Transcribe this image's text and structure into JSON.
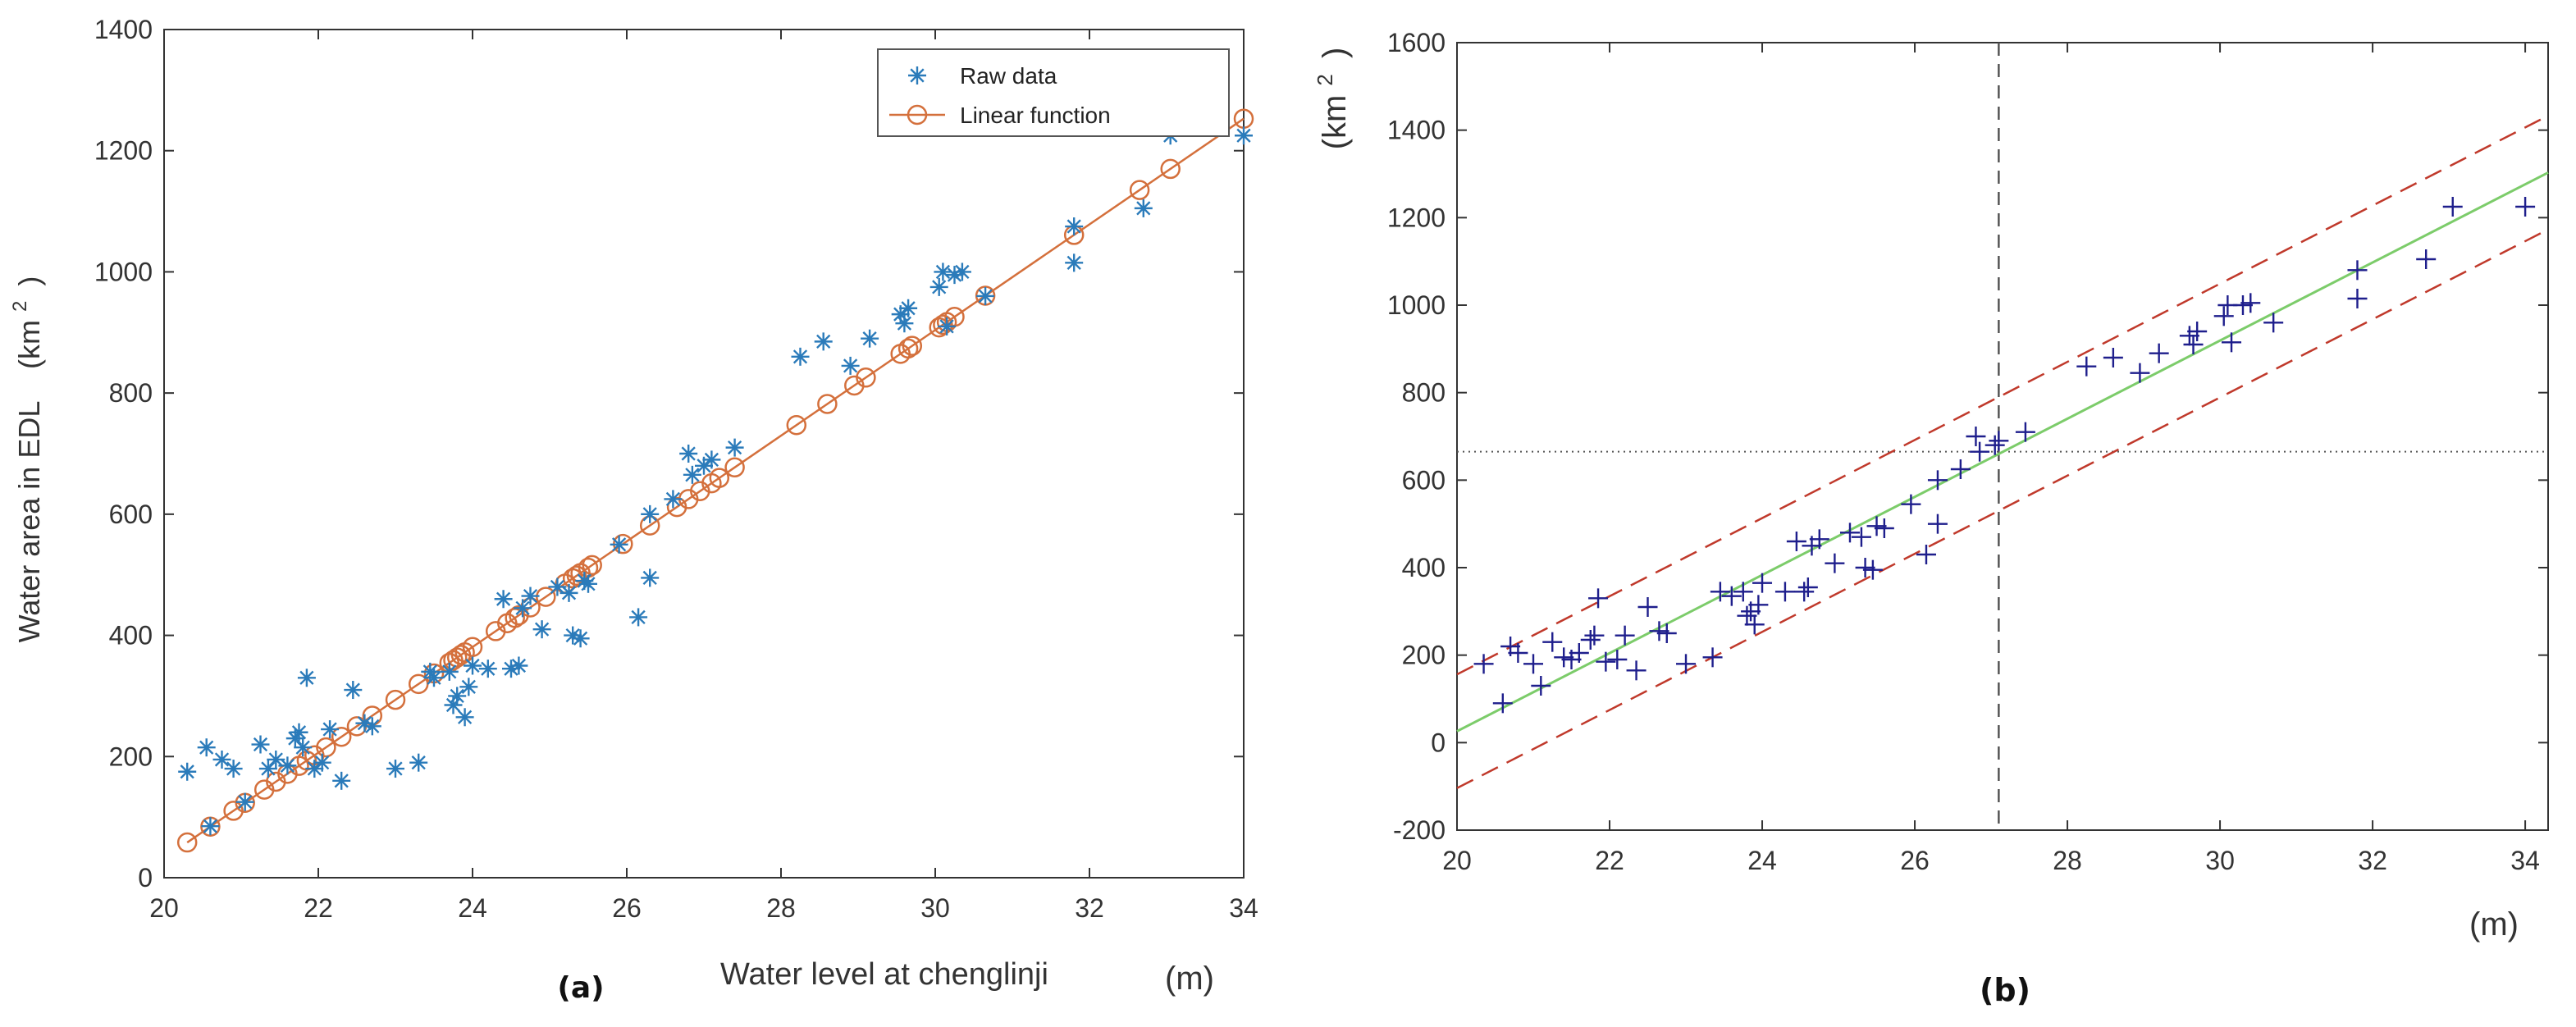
{
  "chart_data": [
    {
      "type": "scatter",
      "panel_label": "(a)",
      "title": "",
      "xlabel": "Water level at chenglinji",
      "xunit": "(m)",
      "ylabel": "Water area in EDL",
      "yunit": "(km",
      "yunit_sup": "2",
      "yunit_close": ")",
      "xlim": [
        20,
        34
      ],
      "ylim": [
        0,
        1400
      ],
      "xticks": [
        20,
        22,
        24,
        26,
        28,
        30,
        32,
        34
      ],
      "yticks": [
        0,
        200,
        400,
        600,
        800,
        1000,
        1200,
        1400
      ],
      "grid": false,
      "legend_position": "top-right",
      "colors": {
        "raw": "#2b7bba",
        "linear": "#d4703c"
      },
      "series": [
        {
          "name": "Raw data",
          "marker": "asterisk",
          "points": [
            [
              20.3,
              175
            ],
            [
              20.55,
              215
            ],
            [
              20.6,
              85
            ],
            [
              20.75,
              195
            ],
            [
              20.9,
              180
            ],
            [
              21.05,
              125
            ],
            [
              21.25,
              220
            ],
            [
              21.35,
              180
            ],
            [
              21.45,
              195
            ],
            [
              21.6,
              185
            ],
            [
              21.7,
              230
            ],
            [
              21.75,
              240
            ],
            [
              21.8,
              215
            ],
            [
              21.85,
              330
            ],
            [
              21.95,
              180
            ],
            [
              22.05,
              190
            ],
            [
              22.15,
              245
            ],
            [
              22.3,
              160
            ],
            [
              22.45,
              310
            ],
            [
              22.6,
              255
            ],
            [
              22.7,
              250
            ],
            [
              23.0,
              180
            ],
            [
              23.3,
              190
            ],
            [
              23.45,
              340
            ],
            [
              23.5,
              330
            ],
            [
              23.7,
              340
            ],
            [
              23.75,
              285
            ],
            [
              23.8,
              300
            ],
            [
              23.9,
              265
            ],
            [
              23.95,
              315
            ],
            [
              24.0,
              350
            ],
            [
              24.2,
              345
            ],
            [
              24.4,
              460
            ],
            [
              24.5,
              345
            ],
            [
              24.6,
              350
            ],
            [
              24.65,
              445
            ],
            [
              24.75,
              465
            ],
            [
              24.9,
              410
            ],
            [
              25.1,
              480
            ],
            [
              25.25,
              470
            ],
            [
              25.3,
              400
            ],
            [
              25.4,
              395
            ],
            [
              25.45,
              490
            ],
            [
              25.5,
              485
            ],
            [
              25.9,
              550
            ],
            [
              26.15,
              430
            ],
            [
              26.3,
              495
            ],
            [
              26.3,
              600
            ],
            [
              26.6,
              625
            ],
            [
              26.8,
              700
            ],
            [
              26.85,
              665
            ],
            [
              27.0,
              680
            ],
            [
              27.1,
              690
            ],
            [
              27.4,
              710
            ],
            [
              28.25,
              860
            ],
            [
              28.55,
              885
            ],
            [
              28.9,
              845
            ],
            [
              29.15,
              890
            ],
            [
              29.55,
              930
            ],
            [
              29.6,
              915
            ],
            [
              29.65,
              940
            ],
            [
              30.05,
              975
            ],
            [
              30.1,
              1000
            ],
            [
              30.15,
              910
            ],
            [
              30.25,
              995
            ],
            [
              30.35,
              1000
            ],
            [
              30.65,
              960
            ],
            [
              31.8,
              1075
            ],
            [
              31.8,
              1015
            ],
            [
              32.7,
              1105
            ],
            [
              33.05,
              1225
            ],
            [
              34.0,
              1225
            ]
          ]
        },
        {
          "name": "Linear function",
          "marker": "circle-line",
          "line": {
            "slope": 87.2,
            "intercept": -1712
          },
          "x": [
            20.3,
            20.6,
            20.9,
            21.05,
            21.3,
            21.45,
            21.6,
            21.75,
            21.85,
            21.95,
            22.1,
            22.3,
            22.5,
            22.7,
            23.0,
            23.3,
            23.5,
            23.7,
            23.75,
            23.8,
            23.85,
            23.9,
            24.0,
            24.3,
            24.45,
            24.55,
            24.6,
            24.75,
            24.95,
            25.2,
            25.3,
            25.35,
            25.4,
            25.5,
            25.55,
            25.95,
            26.3,
            26.65,
            26.8,
            26.95,
            27.1,
            27.2,
            27.4,
            28.2,
            28.6,
            28.95,
            29.1,
            29.55,
            29.65,
            29.7,
            30.05,
            30.1,
            30.15,
            30.25,
            30.65,
            31.8,
            32.65,
            33.05,
            34.0
          ]
        }
      ]
    },
    {
      "type": "scatter",
      "panel_label": "(b)",
      "title": "",
      "xlabel": "",
      "xunit": "(m)",
      "ylabel": "",
      "yunit": "(km",
      "yunit_sup": "2",
      "yunit_close": ")",
      "xlim": [
        20,
        34.3
      ],
      "ylim": [
        -200,
        1600
      ],
      "xticks": [
        20,
        22,
        24,
        26,
        28,
        30,
        32,
        34
      ],
      "yticks": [
        -200,
        0,
        200,
        400,
        600,
        800,
        1000,
        1200,
        1400,
        1600
      ],
      "grid": false,
      "colors": {
        "points": "#1e1e8c",
        "fit": "#7ccc6a",
        "bounds": "#c0392b",
        "ref": "#555555"
      },
      "fit_line": {
        "slope": 89.3,
        "intercept": -1760
      },
      "prediction_band": {
        "offset": 130
      },
      "reference": {
        "x": 27.1,
        "y": 665
      },
      "series": [
        {
          "marker": "plus",
          "points": [
            [
              20.35,
              180
            ],
            [
              20.6,
              90
            ],
            [
              20.7,
              220
            ],
            [
              20.8,
              205
            ],
            [
              21.0,
              180
            ],
            [
              21.1,
              130
            ],
            [
              21.25,
              230
            ],
            [
              21.4,
              195
            ],
            [
              21.5,
              190
            ],
            [
              21.6,
              205
            ],
            [
              21.75,
              235
            ],
            [
              21.8,
              245
            ],
            [
              21.85,
              330
            ],
            [
              21.95,
              185
            ],
            [
              22.1,
              190
            ],
            [
              22.2,
              245
            ],
            [
              22.35,
              165
            ],
            [
              22.5,
              310
            ],
            [
              22.65,
              255
            ],
            [
              22.75,
              250
            ],
            [
              23.0,
              180
            ],
            [
              23.35,
              195
            ],
            [
              23.45,
              345
            ],
            [
              23.6,
              335
            ],
            [
              23.75,
              345
            ],
            [
              23.8,
              290
            ],
            [
              23.85,
              300
            ],
            [
              23.9,
              270
            ],
            [
              23.95,
              315
            ],
            [
              24.0,
              365
            ],
            [
              24.3,
              345
            ],
            [
              24.45,
              460
            ],
            [
              24.55,
              345
            ],
            [
              24.6,
              355
            ],
            [
              24.65,
              450
            ],
            [
              24.75,
              465
            ],
            [
              24.95,
              410
            ],
            [
              25.15,
              480
            ],
            [
              25.3,
              470
            ],
            [
              25.35,
              400
            ],
            [
              25.45,
              395
            ],
            [
              25.5,
              495
            ],
            [
              25.6,
              490
            ],
            [
              25.95,
              545
            ],
            [
              26.15,
              430
            ],
            [
              26.3,
              500
            ],
            [
              26.3,
              600
            ],
            [
              26.6,
              625
            ],
            [
              26.8,
              700
            ],
            [
              26.85,
              665
            ],
            [
              27.05,
              680
            ],
            [
              27.1,
              690
            ],
            [
              27.45,
              710
            ],
            [
              28.25,
              860
            ],
            [
              28.6,
              880
            ],
            [
              28.95,
              845
            ],
            [
              29.2,
              890
            ],
            [
              29.6,
              930
            ],
            [
              29.65,
              910
            ],
            [
              29.7,
              940
            ],
            [
              30.05,
              975
            ],
            [
              30.1,
              1000
            ],
            [
              30.15,
              915
            ],
            [
              30.3,
              1000
            ],
            [
              30.4,
              1005
            ],
            [
              30.7,
              960
            ],
            [
              31.8,
              1080
            ],
            [
              31.8,
              1015
            ],
            [
              32.7,
              1105
            ],
            [
              33.05,
              1225
            ],
            [
              34.0,
              1225
            ]
          ]
        }
      ]
    }
  ]
}
